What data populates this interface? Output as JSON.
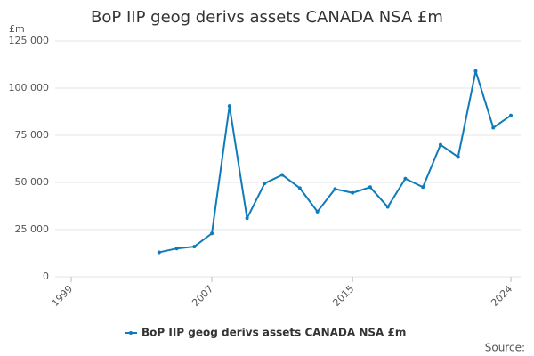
{
  "chart_data": {
    "type": "line",
    "title": "BoP IIP geog derivs assets CANADA NSA £m",
    "y_unit": "£m",
    "source": "Source:",
    "x": [
      2004,
      2005,
      2006,
      2007,
      2008,
      2009,
      2010,
      2011,
      2012,
      2013,
      2014,
      2015,
      2016,
      2017,
      2018,
      2019,
      2020,
      2021,
      2022,
      2023,
      2024
    ],
    "series": [
      {
        "name": "BoP IIP geog derivs assets CANADA NSA £m",
        "color": "#0f7bb8",
        "values": [
          13000,
          15000,
          16000,
          23000,
          90500,
          31000,
          49500,
          54000,
          47000,
          34500,
          46500,
          44500,
          47500,
          37000,
          52000,
          47500,
          70000,
          63500,
          109000,
          79000,
          85500
        ]
      }
    ],
    "xlim": [
      1999,
      2024
    ],
    "xticks": [
      1999,
      2007,
      2015,
      2024
    ],
    "ylim": [
      0,
      125000
    ],
    "yticks": [
      0,
      {
        "value": 25000,
        "label": "25 000"
      },
      {
        "value": 50000,
        "label": "50 000"
      },
      {
        "value": 75000,
        "label": "75 000"
      },
      {
        "value": 100000,
        "label": "100 000"
      },
      {
        "value": 125000,
        "label": "125 000"
      }
    ],
    "grid": true
  }
}
